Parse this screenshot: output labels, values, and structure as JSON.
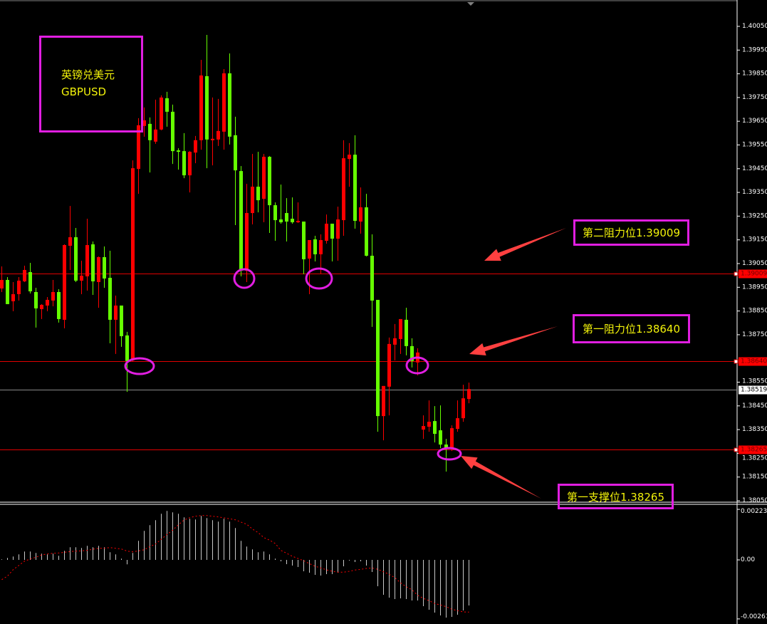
{
  "instrument": {
    "name_cn": "英镑兑美元",
    "symbol": "GBPUSD"
  },
  "annotations": {
    "resistance2": {
      "label": "第二阻力位1.39009",
      "price": 1.39009
    },
    "resistance1": {
      "label": "第一阻力位1.38640",
      "price": 1.3864
    },
    "support1": {
      "label": "第一支撑位1.38265",
      "price": 1.38265
    }
  },
  "colors": {
    "background": "#000000",
    "bull": "#ff0000",
    "bear": "#66ff00",
    "annotation_box": "#e11ee1",
    "annotation_text": "#f2f20a",
    "arrow": "#ff4040",
    "macd_histogram": "#c8c8c8",
    "macd_signal": "#ff0000"
  },
  "chart_data": [
    {
      "type": "candlestick",
      "title": "",
      "ylim": [
        1.38,
        1.401
      ],
      "y_ticks": [
        "1.40050",
        "1.39950",
        "1.39850",
        "1.39750",
        "1.39650",
        "1.39550",
        "1.39450",
        "1.39350",
        "1.39250",
        "1.39150",
        "1.39050",
        "1.38950",
        "1.38850",
        "1.38750",
        "1.38550",
        "1.38450",
        "1.38350",
        "1.38250",
        "1.38150",
        "1.38050"
      ],
      "price_tags": [
        {
          "text": "1.39009",
          "price": 1.39009,
          "style": "level"
        },
        {
          "text": "1.38640",
          "price": 1.3864,
          "style": "level"
        },
        {
          "text": "1.38519",
          "price": 1.38519,
          "style": "current"
        },
        {
          "text": "1.38265",
          "price": 1.38265,
          "style": "level"
        }
      ],
      "ohlc": [
        [
          1.38945,
          1.39038,
          1.3893,
          1.38981
        ],
        [
          1.38981,
          1.38993,
          1.38879,
          1.38879
        ],
        [
          1.38891,
          1.38972,
          1.38849,
          1.38921
        ],
        [
          1.38921,
          1.38993,
          1.38894,
          1.38978
        ],
        [
          1.38975,
          1.39041,
          1.38972,
          1.39023
        ],
        [
          1.39014,
          1.39053,
          1.38924,
          1.38933
        ],
        [
          1.3893,
          1.38948,
          1.3878,
          1.38861
        ],
        [
          1.38858,
          1.38879,
          1.38816,
          1.38876
        ],
        [
          1.38873,
          1.38909,
          1.38849,
          1.38897
        ],
        [
          1.38894,
          1.38981,
          1.3887,
          1.3893
        ],
        [
          1.3893,
          1.38942,
          1.38801,
          1.38816
        ],
        [
          1.38813,
          1.39131,
          1.38777,
          1.39128
        ],
        [
          1.39125,
          1.39293,
          1.39023,
          1.39161
        ],
        [
          1.39161,
          1.392,
          1.38972,
          1.38978
        ],
        [
          1.38978,
          1.39062,
          1.38921,
          1.38999
        ],
        [
          1.38996,
          1.39239,
          1.38936,
          1.39128
        ],
        [
          1.39131,
          1.39143,
          1.38918,
          1.38975
        ],
        [
          1.38972,
          1.3908,
          1.38864,
          1.39077
        ],
        [
          1.39077,
          1.39122,
          1.38948,
          1.38987
        ],
        [
          1.3899,
          1.39104,
          1.38714,
          1.38813
        ],
        [
          1.38813,
          1.38915,
          1.38669,
          1.38873
        ],
        [
          1.38873,
          1.38873,
          1.38699,
          1.38744
        ],
        [
          1.38747,
          1.38762,
          1.38509,
          1.38639
        ],
        [
          1.38642,
          1.39485,
          1.38636,
          1.39452
        ],
        [
          1.39449,
          1.39663,
          1.39344,
          1.39633
        ],
        [
          1.3963,
          1.39708,
          1.39585,
          1.39654
        ],
        [
          1.39639,
          1.39666,
          1.39434,
          1.3957
        ],
        [
          1.39564,
          1.39741,
          1.39555,
          1.39615
        ],
        [
          1.39615,
          1.39759,
          1.39612,
          1.3975
        ],
        [
          1.39747,
          1.39774,
          1.39627,
          1.3969
        ],
        [
          1.3969,
          1.3972,
          1.3947,
          1.39524
        ],
        [
          1.39527,
          1.39536,
          1.39446,
          1.39521
        ],
        [
          1.39524,
          1.396,
          1.3941,
          1.39422
        ],
        [
          1.39422,
          1.39524,
          1.3935,
          1.39521
        ],
        [
          1.39518,
          1.39588,
          1.39473,
          1.3957
        ],
        [
          1.3957,
          1.39909,
          1.3953,
          1.39843
        ],
        [
          1.3984,
          1.40014,
          1.39452,
          1.39573
        ],
        [
          1.3957,
          1.3975,
          1.39464,
          1.39576
        ],
        [
          1.39573,
          1.39744,
          1.39546,
          1.39609
        ],
        [
          1.39606,
          1.3987,
          1.3953,
          1.39852
        ],
        [
          1.39852,
          1.39936,
          1.39552,
          1.39585
        ],
        [
          1.39591,
          1.39669,
          1.39212,
          1.39443
        ],
        [
          1.3944,
          1.39461,
          1.38996,
          1.3902
        ],
        [
          1.3902,
          1.39386,
          1.38972,
          1.39263
        ],
        [
          1.39263,
          1.39512,
          1.39215,
          1.39374
        ],
        [
          1.39374,
          1.39521,
          1.39266,
          1.39317
        ],
        [
          1.39323,
          1.39512,
          1.39224,
          1.395
        ],
        [
          1.395,
          1.39503,
          1.39179,
          1.39296
        ],
        [
          1.39296,
          1.39308,
          1.39146,
          1.39233
        ],
        [
          1.39236,
          1.39383,
          1.39218,
          1.39224
        ],
        [
          1.39263,
          1.39326,
          1.39143,
          1.39227
        ],
        [
          1.39239,
          1.39329,
          1.39218,
          1.39224
        ],
        [
          1.39224,
          1.39308,
          1.39221,
          1.3923
        ],
        [
          1.39227,
          1.39227,
          1.39005,
          1.39068
        ],
        [
          1.39071,
          1.39149,
          1.38921,
          1.39149
        ],
        [
          1.39152,
          1.39167,
          1.39059,
          1.39089
        ],
        [
          1.39089,
          1.39173,
          1.39008,
          1.39149
        ],
        [
          1.39146,
          1.39257,
          1.39134,
          1.39218
        ],
        [
          1.39218,
          1.39218,
          1.39059,
          1.39155
        ],
        [
          1.39155,
          1.3929,
          1.39062,
          1.39236
        ],
        [
          1.39233,
          1.3957,
          1.39167,
          1.39494
        ],
        [
          1.39491,
          1.39558,
          1.39374,
          1.39509
        ],
        [
          1.39509,
          1.39591,
          1.39197,
          1.3923
        ],
        [
          1.39227,
          1.39371,
          1.39176,
          1.39287
        ],
        [
          1.39287,
          1.39344,
          1.3908,
          1.39083
        ],
        [
          1.39083,
          1.39173,
          1.38783,
          1.38894
        ],
        [
          1.38897,
          1.38897,
          1.38341,
          1.38407
        ],
        [
          1.38407,
          1.38534,
          1.38305,
          1.38534
        ],
        [
          1.38531,
          1.38738,
          1.3841,
          1.38711
        ],
        [
          1.38708,
          1.38795,
          1.38642,
          1.38735
        ],
        [
          1.38732,
          1.38816,
          1.38669,
          1.38816
        ],
        [
          1.38813,
          1.38864,
          1.38663,
          1.38702
        ],
        [
          1.38702,
          1.38735,
          1.38612,
          1.38639
        ],
        [
          1.38633,
          1.38693,
          1.38579,
          1.38675
        ],
        [
          1.3835,
          1.3841,
          1.38311,
          1.38365
        ],
        [
          1.38362,
          1.38473,
          1.38341,
          1.38383
        ],
        [
          1.38386,
          1.38449,
          1.38296,
          1.38332
        ],
        [
          1.38347,
          1.38452,
          1.38272,
          1.38287
        ],
        [
          1.38287,
          1.38311,
          1.38173,
          1.38272
        ],
        [
          1.38272,
          1.38368,
          1.3826,
          1.38356
        ],
        [
          1.38353,
          1.38473,
          1.38341,
          1.38398
        ],
        [
          1.38398,
          1.38539,
          1.38383,
          1.38482
        ],
        [
          1.38479,
          1.38548,
          1.38461,
          1.38521
        ]
      ]
    },
    {
      "type": "bar+line",
      "title": "",
      "ylim": [
        -0.00261,
        0.002234
      ],
      "y_ticks": [
        "0.002234",
        "0.00",
        "-0.00261"
      ],
      "histogram": [
        2.2e-05,
        8.5e-05,
        0.000148,
        0.000243,
        0.000369,
        0.000369,
        0.000306,
        0.000274,
        0.000243,
        0.000274,
        0.00018,
        0.0004,
        0.000558,
        0.000558,
        0.000526,
        0.000621,
        0.000558,
        0.000621,
        0.000558,
        0.000337,
        0.000243,
        5.4e-05,
        -0.000198,
        0.000306,
        0.000841,
        0.001282,
        0.001534,
        0.001755,
        0.002038,
        0.002164,
        0.002101,
        0.002038,
        0.001881,
        0.001818,
        0.001786,
        0.001944,
        0.001849,
        0.001755,
        0.001692,
        0.001818,
        0.001692,
        0.001408,
        0.000841,
        0.000589,
        0.000463,
        0.000337,
        0.000369,
        0.000243,
        5.4e-05,
        -6.3e-05,
        -0.000189,
        -0.000252,
        -0.000315,
        -0.000504,
        -0.000567,
        -0.000662,
        -0.000693,
        -0.00063,
        -0.00063,
        -0.000567,
        -0.000284,
        -3.2e-05,
        -9.5e-05,
        -6.3e-05,
        -0.000252,
        -0.000536,
        -0.001166,
        -0.001544,
        -0.00167,
        -0.001733,
        -0.001701,
        -0.001733,
        -0.001796,
        -0.001796,
        -0.002048,
        -0.002205,
        -0.002331,
        -0.002457,
        -0.002552,
        -0.00252,
        -0.002426,
        -0.002237,
        -0.002016
      ],
      "signal": [
        -0.000873,
        -0.000715,
        -0.000432,
        -0.000243,
        -5.4e-05,
        4.1e-05,
        0.000117,
        0.000221,
        0.000261,
        0.000293,
        0.000306,
        0.000337,
        0.000369,
        0.000387,
        0.0004,
        0.000419,
        0.000473,
        0.000513,
        0.000513,
        0.000545,
        0.000513,
        0.000482,
        0.000387,
        0.000356,
        0.0004,
        0.00045,
        0.000589,
        0.000702,
        0.000914,
        0.001125,
        0.001314,
        0.001553,
        0.001764,
        0.001868,
        0.001931,
        0.001962,
        0.001962,
        0.001931,
        0.0019,
        0.001859,
        0.001818,
        0.001773,
        0.00167,
        0.001575,
        0.001364,
        0.001206,
        0.000986,
        0.000873,
        0.000725,
        0.000419,
        0.000293,
        0.000158,
        6.3e-05,
        -4.1e-05,
        -0.000167,
        -0.000284,
        -0.000356,
        -0.000441,
        -0.000504,
        -0.000545,
        -0.000545,
        -0.000504,
        -0.00045,
        -0.000419,
        -0.000378,
        -0.000356,
        -0.000419,
        -0.000526,
        -0.000639,
        -0.000788,
        -0.001017,
        -0.001188,
        -0.001323,
        -0.001566,
        -0.001701,
        -0.001805,
        -0.001931,
        -0.001994,
        -0.00207,
        -0.002183,
        -0.002246,
        -0.0023,
        -0.002309
      ]
    }
  ]
}
